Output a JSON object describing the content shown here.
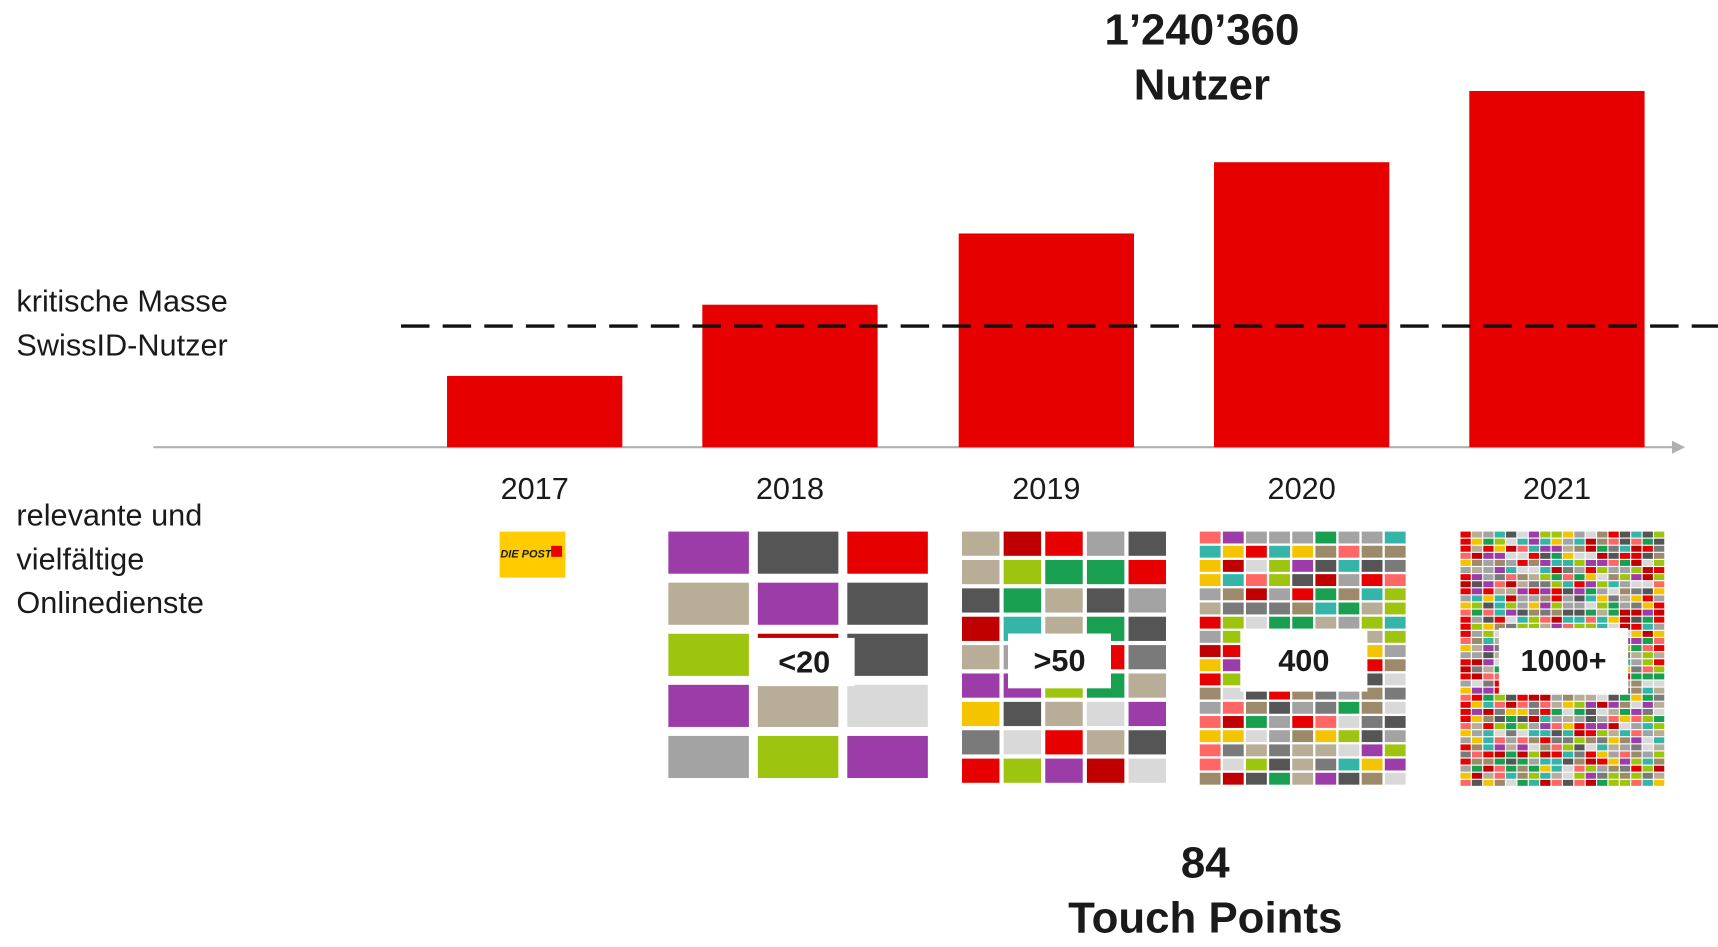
{
  "chart_data": {
    "type": "bar",
    "title": "1’240’360",
    "subtitle": "Nutzer",
    "categories": [
      "2017",
      "2018",
      "2019",
      "2020",
      "2021"
    ],
    "values": [
      1,
      2,
      3,
      4,
      5
    ],
    "color": "#e60000",
    "threshold": {
      "value": 1.7,
      "label": [
        "kritische Masse",
        "SwissID-Nutzer"
      ]
    }
  },
  "services": {
    "label": [
      "relevante und",
      "vielfältige",
      "Onlinedienste"
    ],
    "logo": "DIE POST",
    "tiles": [
      "<20",
      ">50",
      "400",
      "1000+"
    ]
  },
  "touch_points": {
    "value": 84,
    "label": "Touch Points"
  }
}
